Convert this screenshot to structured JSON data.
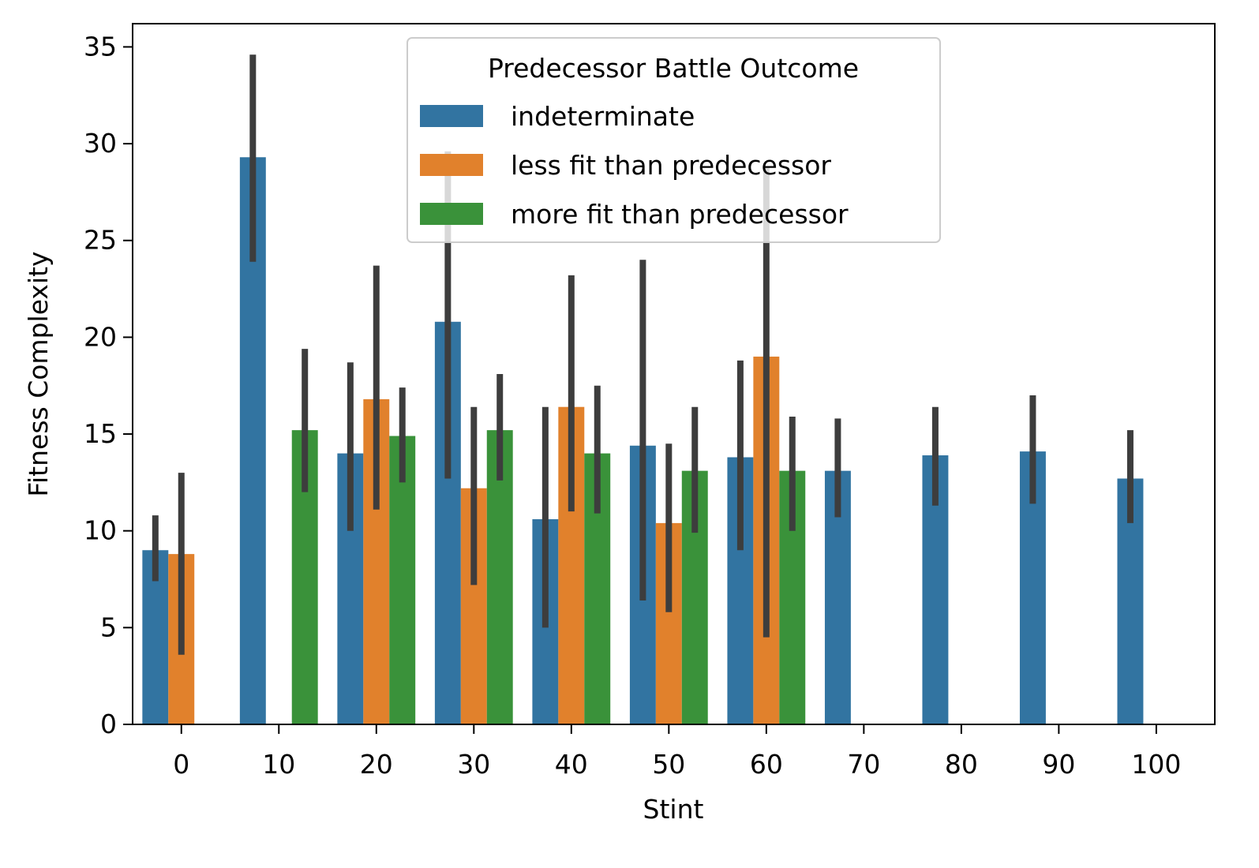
{
  "chart_data": {
    "type": "bar",
    "title": "",
    "xlabel": "Stint",
    "ylabel": "Fitness Complexity",
    "ylim": [
      0,
      36.2
    ],
    "yticks": [
      0,
      5,
      10,
      15,
      20,
      25,
      30,
      35
    ],
    "categories": [
      "0",
      "10",
      "20",
      "30",
      "40",
      "50",
      "60",
      "70",
      "80",
      "90",
      "100"
    ],
    "grid": false,
    "legend": {
      "title": "Predecessor Battle Outcome",
      "placement": "top-center"
    },
    "series": [
      {
        "name": "indeterminate",
        "color": "#3274a1",
        "values": [
          9.0,
          29.3,
          14.0,
          20.8,
          10.6,
          14.4,
          13.8,
          13.1,
          13.9,
          14.1,
          12.7
        ],
        "ci": [
          [
            7.4,
            10.8
          ],
          [
            23.9,
            34.6
          ],
          [
            10.0,
            18.7
          ],
          [
            12.7,
            29.6
          ],
          [
            5.0,
            16.4
          ],
          [
            6.4,
            24.0
          ],
          [
            9.0,
            18.8
          ],
          [
            10.7,
            15.8
          ],
          [
            11.3,
            16.4
          ],
          [
            11.4,
            17.0
          ],
          [
            10.4,
            15.2
          ]
        ]
      },
      {
        "name": "less fit than predecessor",
        "color": "#e1812c",
        "values": [
          8.8,
          null,
          16.8,
          12.2,
          16.4,
          10.4,
          19.0,
          null,
          null,
          null,
          null
        ],
        "ci": [
          [
            3.6,
            13.0
          ],
          null,
          [
            11.1,
            23.7
          ],
          [
            7.2,
            16.4
          ],
          [
            11.0,
            23.2
          ],
          [
            5.8,
            14.5
          ],
          [
            4.5,
            28.8
          ],
          null,
          null,
          null,
          null
        ]
      },
      {
        "name": "more fit than predecessor",
        "color": "#3a923a",
        "values": [
          null,
          15.2,
          14.9,
          15.2,
          14.0,
          13.1,
          13.1,
          null,
          null,
          null,
          null
        ],
        "ci": [
          null,
          [
            12.0,
            19.4
          ],
          [
            12.5,
            17.4
          ],
          [
            12.6,
            18.1
          ],
          [
            10.9,
            17.5
          ],
          [
            9.9,
            16.4
          ],
          [
            10.0,
            15.9
          ],
          null,
          null,
          null,
          null
        ]
      }
    ]
  }
}
